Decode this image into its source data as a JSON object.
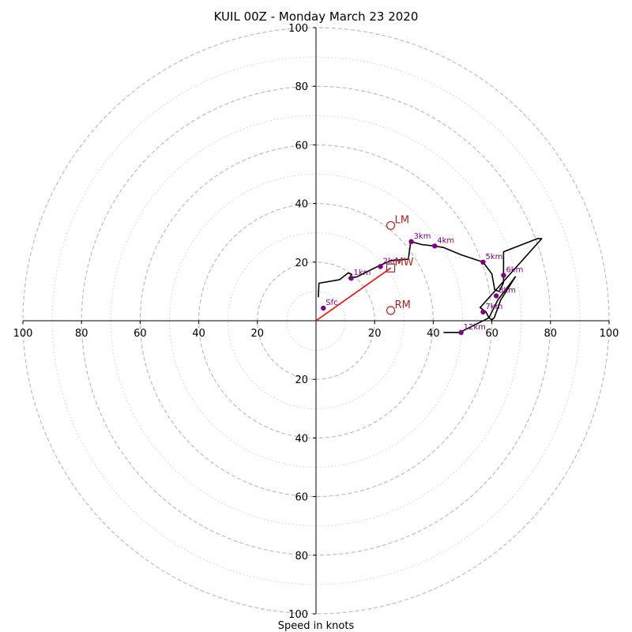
{
  "chart_data": {
    "type": "hodograph",
    "title": "KUIL 00Z - Monday March 23 2020",
    "xlabel": "Speed in knots",
    "units": "knots",
    "range": [
      -100,
      100
    ],
    "ring_major": [
      20,
      40,
      60,
      80,
      100
    ],
    "ring_minor": [
      10,
      30,
      50,
      70,
      90
    ],
    "tick_labels": [
      "100",
      "80",
      "60",
      "40",
      "20",
      "20",
      "40",
      "60",
      "80",
      "100"
    ],
    "y_tick_labels": [
      "100",
      "80",
      "60",
      "40",
      "20",
      "20",
      "40",
      "60",
      "80",
      "100"
    ],
    "hodo_trace": [
      [
        0.8,
        8.0
      ],
      [
        1.0,
        12.8
      ],
      [
        8.0,
        14.0
      ],
      [
        11.0,
        16.3
      ],
      [
        12.2,
        15.8
      ],
      [
        11.2,
        14.5
      ],
      [
        14.0,
        15.0
      ],
      [
        18.0,
        17.0
      ],
      [
        21.0,
        18.5
      ],
      [
        25.5,
        20.5
      ],
      [
        31.5,
        21.0
      ],
      [
        32.0,
        24.5
      ],
      [
        32.3,
        27.0
      ],
      [
        36.0,
        26.0
      ],
      [
        40.5,
        25.5
      ],
      [
        43.5,
        25.0
      ],
      [
        49.5,
        22.5
      ],
      [
        57.0,
        20.0
      ],
      [
        60.0,
        16.0
      ],
      [
        61.0,
        10.5
      ],
      [
        62.5,
        10.0
      ],
      [
        64.0,
        13.0
      ],
      [
        64.0,
        17.0
      ],
      [
        64.0,
        20.0
      ],
      [
        64.0,
        22.0
      ],
      [
        64.0,
        23.5
      ],
      [
        75.5,
        28.0
      ],
      [
        77.0,
        28.0
      ],
      [
        56.0,
        4.5
      ],
      [
        58.0,
        3.0
      ],
      [
        59.0,
        1.0
      ],
      [
        60.0,
        0.3
      ],
      [
        60.8,
        1.0
      ],
      [
        63.0,
        7.0
      ],
      [
        68.0,
        15.0
      ],
      [
        62.0,
        7.0
      ],
      [
        59.0,
        1.0
      ],
      [
        49.0,
        -4.0
      ],
      [
        43.5,
        -4.0
      ]
    ],
    "height_markers": [
      {
        "label": "Sfc",
        "u": 2.5,
        "v": 4.3
      },
      {
        "label": "1km",
        "u": 12.0,
        "v": 14.5
      },
      {
        "label": "2km",
        "u": 22.0,
        "v": 18.5
      },
      {
        "label": "3km",
        "u": 32.5,
        "v": 27.0
      },
      {
        "label": "4km",
        "u": 40.5,
        "v": 25.5
      },
      {
        "label": "5km",
        "u": 57.0,
        "v": 20.0
      },
      {
        "label": "6km",
        "u": 64.0,
        "v": 15.5
      },
      {
        "label": "8km",
        "u": 61.5,
        "v": 8.5
      },
      {
        "label": "7km",
        "u": 57.0,
        "v": 3.0
      },
      {
        "label": "12km",
        "u": 49.5,
        "v": -4.0
      }
    ],
    "storm_motion": [
      {
        "label": "LM",
        "u": 25.5,
        "v": 32.5,
        "shape": "circle"
      },
      {
        "label": "MW",
        "u": 25.5,
        "v": 18.0,
        "shape": "square"
      },
      {
        "label": "RM",
        "u": 25.5,
        "v": 3.5,
        "shape": "circle"
      }
    ],
    "mean_wind_vector": {
      "from": [
        0,
        0
      ],
      "to": [
        25.5,
        18.0
      ],
      "color": "#ff0000"
    },
    "colors": {
      "hodo": "#000000",
      "marker": "#800080",
      "storm": "#b22222",
      "grid": "#bdbdbd",
      "axis": "#000000"
    }
  }
}
